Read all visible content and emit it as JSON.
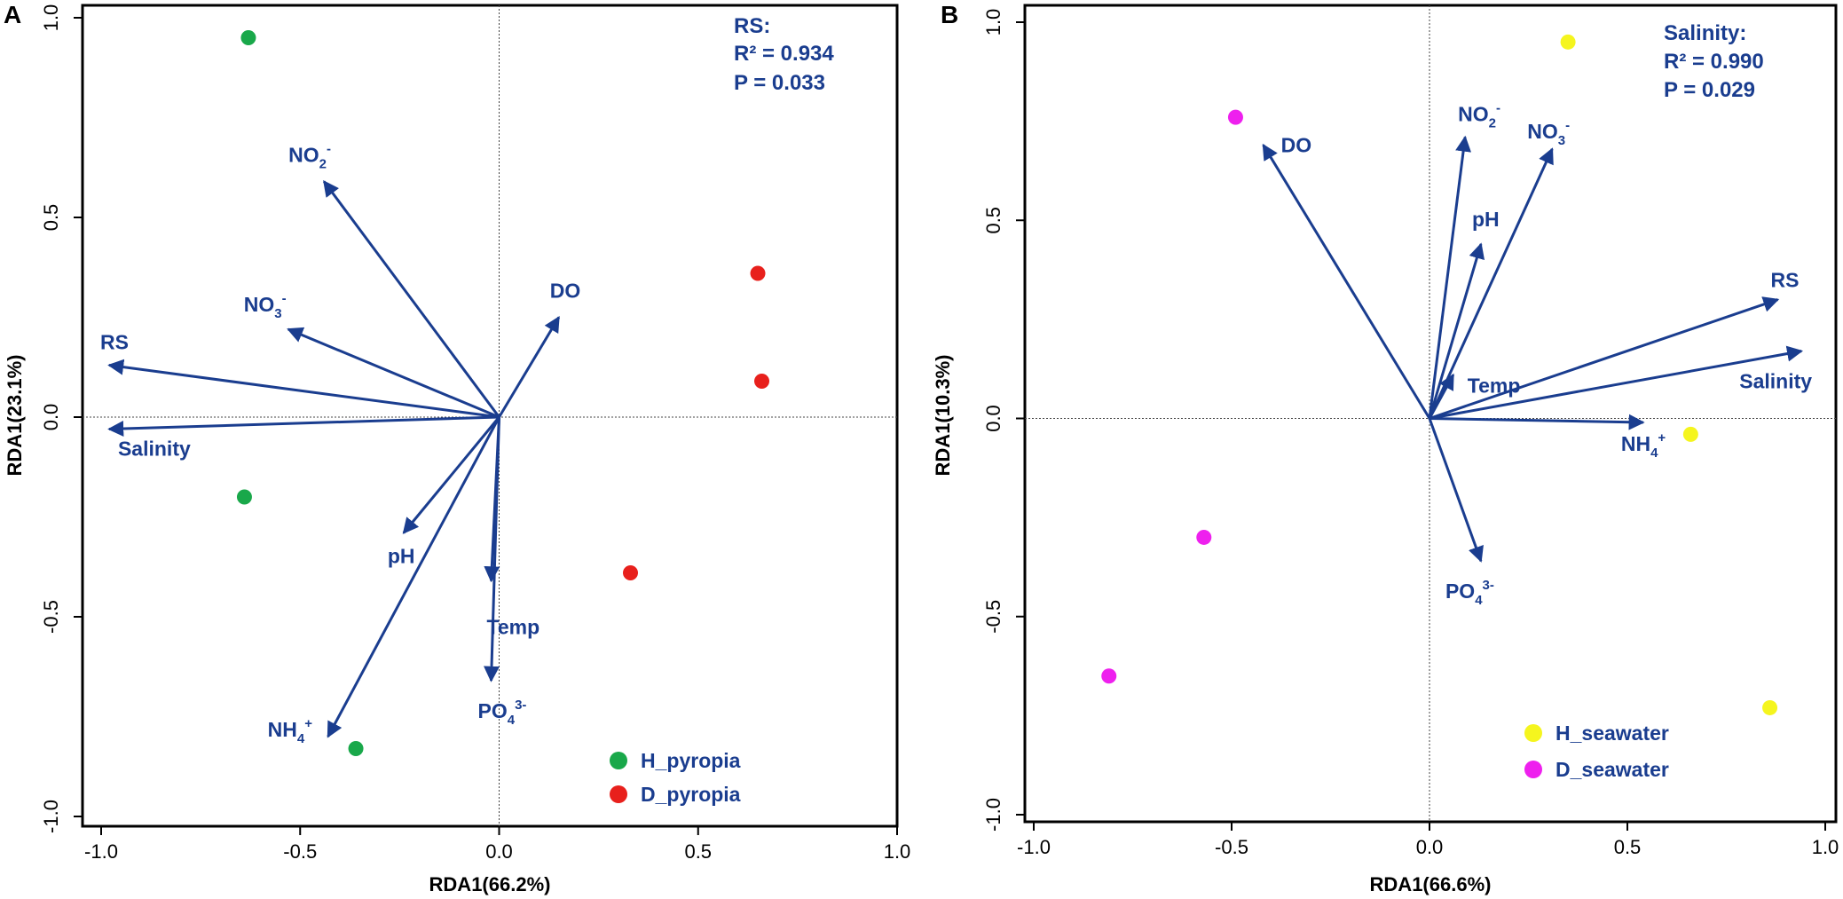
{
  "figure": {
    "arrow_color": "#1a3d8f",
    "text_color": "#1a3d8f"
  },
  "chart_data": [
    {
      "panel": "A",
      "type": "scatter",
      "xlabel": "RDA1(66.2%)",
      "ylabel": "RDA1(23.1%)",
      "xlim": [
        -1.0,
        1.0
      ],
      "ylim": [
        -1.0,
        1.0
      ],
      "xticks": [
        -1.0,
        -0.5,
        0.0,
        0.5,
        1.0
      ],
      "yticks": [
        -1.0,
        -0.5,
        0.0,
        0.5,
        1.0
      ],
      "x_tick_labels": [
        "-1.0",
        "-0.5",
        "0.0",
        "0.5",
        "1.0"
      ],
      "y_tick_labels": [
        "-1.0",
        "-0.5",
        "0.0",
        "0.5",
        "1.0"
      ],
      "stat": {
        "title": "RS:",
        "r2": "R² = 0.934",
        "p": "P = 0.033"
      },
      "arrows": [
        {
          "base": "RS",
          "sup": "",
          "sub": "",
          "x": -0.98,
          "y": 0.13
        },
        {
          "base": "Salinity",
          "sup": "",
          "sub": "",
          "x": -0.98,
          "y": -0.03
        },
        {
          "base": "NO",
          "sub": "2",
          "sup": "-",
          "x": -0.44,
          "y": 0.59
        },
        {
          "base": "NO",
          "sub": "3",
          "sup": "-",
          "x": -0.53,
          "y": 0.22
        },
        {
          "base": "DO",
          "sup": "",
          "sub": "",
          "x": 0.15,
          "y": 0.25
        },
        {
          "base": "pH",
          "sup": "",
          "sub": "",
          "x": -0.24,
          "y": -0.29
        },
        {
          "base": "Temp",
          "sup": "",
          "sub": "",
          "x": -0.02,
          "y": -0.41
        },
        {
          "base": "PO",
          "sub": "4",
          "sup": "3-",
          "x": -0.02,
          "y": -0.66
        },
        {
          "base": "NH",
          "sub": "4",
          "sup": "+",
          "x": -0.43,
          "y": -0.8
        }
      ],
      "series": [
        {
          "name": "H_pyropia",
          "color": "#19a84a",
          "points": [
            [
              -0.63,
              0.95
            ],
            [
              -0.64,
              -0.2
            ],
            [
              -0.36,
              -0.83
            ]
          ]
        },
        {
          "name": "D_pyropia",
          "color": "#e8201c",
          "points": [
            [
              0.65,
              0.36
            ],
            [
              0.66,
              0.09
            ],
            [
              0.33,
              -0.39
            ]
          ]
        }
      ]
    },
    {
      "panel": "B",
      "type": "scatter",
      "xlabel": "RDA1(66.6%)",
      "ylabel": "RDA1(10.3%)",
      "xlim": [
        -1.0,
        1.0
      ],
      "ylim": [
        -1.0,
        1.0
      ],
      "xticks": [
        -1.0,
        -0.5,
        0.0,
        0.5,
        1.0
      ],
      "yticks": [
        -1.0,
        -0.5,
        0.0,
        0.5,
        1.0
      ],
      "x_tick_labels": [
        "-1.0",
        "-0.5",
        "0.0",
        "0.5",
        "1.0"
      ],
      "y_tick_labels": [
        "-1.0",
        "-0.5",
        "0.0",
        "0.5",
        "1.0"
      ],
      "stat": {
        "title": "Salinity:",
        "r2": "R² = 0.990",
        "p": "P = 0.029"
      },
      "arrows": [
        {
          "base": "DO",
          "sup": "",
          "sub": "",
          "x": -0.42,
          "y": 0.69
        },
        {
          "base": "NO",
          "sub": "2",
          "sup": "-",
          "x": 0.09,
          "y": 0.71
        },
        {
          "base": "NO",
          "sub": "3",
          "sup": "-",
          "x": 0.31,
          "y": 0.68
        },
        {
          "base": "pH",
          "sup": "",
          "sub": "",
          "x": 0.13,
          "y": 0.44
        },
        {
          "base": "Temp",
          "sup": "",
          "sub": "",
          "x": 0.06,
          "y": 0.11
        },
        {
          "base": "RS",
          "sup": "",
          "sub": "",
          "x": 0.88,
          "y": 0.3
        },
        {
          "base": "Salinity",
          "sup": "",
          "sub": "",
          "x": 0.94,
          "y": 0.17
        },
        {
          "base": "NH",
          "sub": "4",
          "sup": "+",
          "x": 0.54,
          "y": -0.01
        },
        {
          "base": "PO",
          "sub": "4",
          "sup": "3-",
          "x": 0.13,
          "y": -0.36
        }
      ],
      "series": [
        {
          "name": "H_seawater",
          "color": "#f5f51e",
          "points": [
            [
              0.35,
              0.95
            ],
            [
              0.66,
              -0.04
            ],
            [
              0.86,
              -0.73
            ]
          ]
        },
        {
          "name": "D_seawater",
          "color": "#ee20ee",
          "points": [
            [
              -0.49,
              0.76
            ],
            [
              -0.57,
              -0.3
            ],
            [
              -0.81,
              -0.65
            ]
          ]
        }
      ]
    }
  ]
}
